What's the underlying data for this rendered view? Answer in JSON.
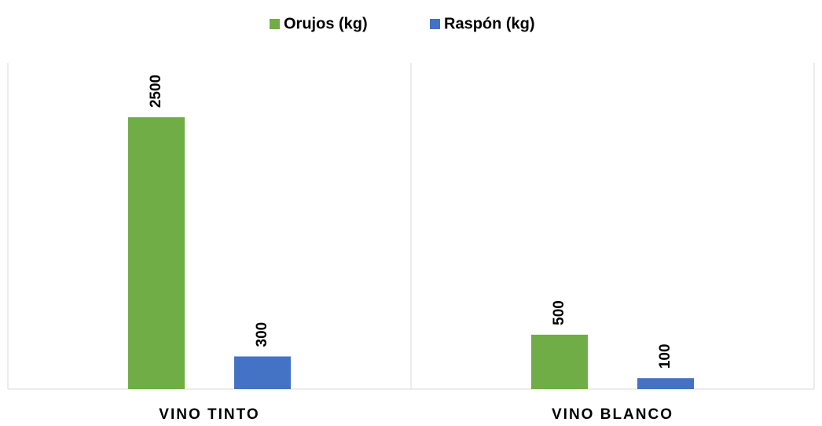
{
  "chart_data": {
    "type": "bar",
    "categories": [
      "VINO TINTO",
      "VINO BLANCO"
    ],
    "series": [
      {
        "name": "Orujos (kg)",
        "color": "#70ad47",
        "values": [
          2500,
          500
        ]
      },
      {
        "name": "Raspón (kg)",
        "color": "#4472c4",
        "values": [
          300,
          100
        ]
      }
    ],
    "ylim": [
      0,
      3000
    ],
    "legend": "top"
  }
}
